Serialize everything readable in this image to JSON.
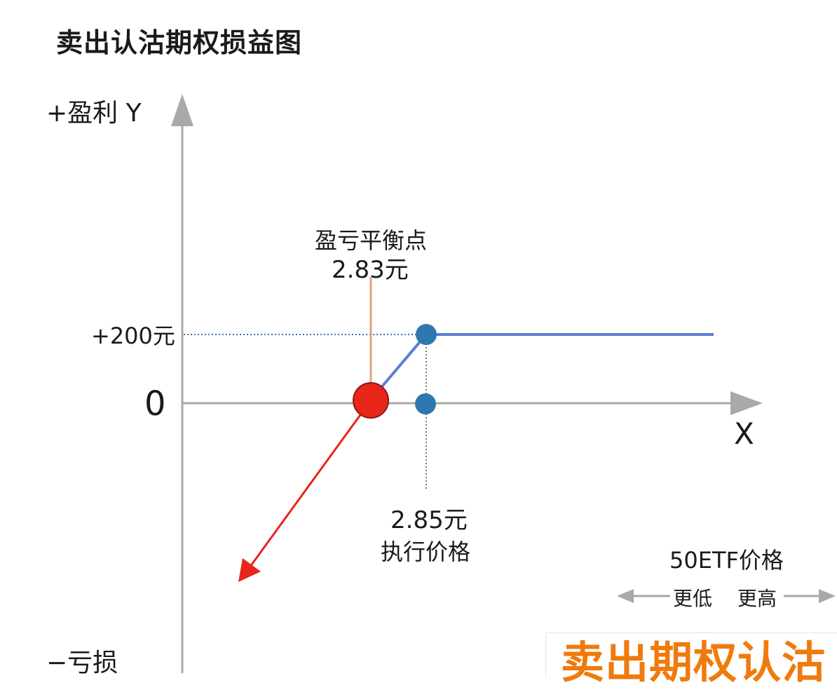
{
  "title": "卖出认沽期权损益图",
  "y_axis": {
    "positive_label": "+盈利 Y",
    "negative_label": "−亏损",
    "zero_label": "0"
  },
  "x_axis": {
    "label": "X"
  },
  "profit_line": {
    "label": "+200元",
    "color": "#5b7fd1"
  },
  "breakeven": {
    "label": "盈亏平衡点",
    "value": "2.83元",
    "color": "#e8261a",
    "leader_color": "#e2a27c"
  },
  "strike": {
    "value": "2.85元",
    "label": "执行价格",
    "marker_color": "#2f78ae"
  },
  "etf_direction": {
    "label": "50ETF价格",
    "lower": "更低",
    "higher": "更高"
  },
  "loss_arrow_color": "#e8261a",
  "axis_color": "#a9a9a9",
  "stamp": {
    "text": "卖出期权认沽",
    "color": "#f07a0c"
  }
}
